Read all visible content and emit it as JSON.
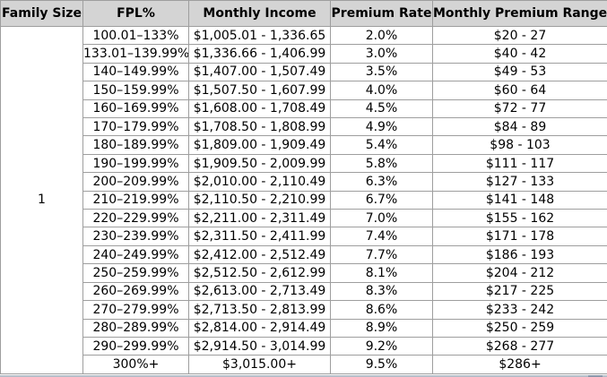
{
  "table": {
    "columns": [
      {
        "label": "Family Size"
      },
      {
        "label": "FPL%"
      },
      {
        "label": "Monthly Income"
      },
      {
        "label": "Premium Rate"
      },
      {
        "label": "Monthly Premium Range"
      }
    ],
    "family_size": "1",
    "rows": [
      {
        "fpl": "100.01–133%",
        "income": "$1,005.01 - 1,336.65",
        "rate": "2.0%",
        "range": "$20 - 27"
      },
      {
        "fpl": "133.01–139.99%",
        "income": "$1,336.66 - 1,406.99",
        "rate": "3.0%",
        "range": "$40 - 42"
      },
      {
        "fpl": "140–149.99%",
        "income": "$1,407.00 - 1,507.49",
        "rate": "3.5%",
        "range": "$49 - 53"
      },
      {
        "fpl": "150–159.99%",
        "income": "$1,507.50 - 1,607.99",
        "rate": "4.0%",
        "range": "$60 - 64"
      },
      {
        "fpl": "160–169.99%",
        "income": "$1,608.00 - 1,708.49",
        "rate": "4.5%",
        "range": "$72 - 77"
      },
      {
        "fpl": "170–179.99%",
        "income": "$1,708.50 - 1,808.99",
        "rate": "4.9%",
        "range": "$84 - 89"
      },
      {
        "fpl": "180–189.99%",
        "income": "$1,809.00 - 1,909.49",
        "rate": "5.4%",
        "range": "$98 - 103"
      },
      {
        "fpl": "190–199.99%",
        "income": "$1,909.50 - 2,009.99",
        "rate": "5.8%",
        "range": "$111 - 117"
      },
      {
        "fpl": "200–209.99%",
        "income": "$2,010.00 - 2,110.49",
        "rate": "6.3%",
        "range": "$127 - 133"
      },
      {
        "fpl": "210–219.99%",
        "income": "$2,110.50 - 2,210.99",
        "rate": "6.7%",
        "range": "$141 - 148"
      },
      {
        "fpl": "220–229.99%",
        "income": "$2,211.00 - 2,311.49",
        "rate": "7.0%",
        "range": "$155 - 162"
      },
      {
        "fpl": "230–239.99%",
        "income": "$2,311.50 - 2,411.99",
        "rate": "7.4%",
        "range": "$171 - 178"
      },
      {
        "fpl": "240–249.99%",
        "income": "$2,412.00 - 2,512.49",
        "rate": "7.7%",
        "range": "$186 - 193"
      },
      {
        "fpl": "250–259.99%",
        "income": "$2,512.50 - 2,612.99",
        "rate": "8.1%",
        "range": "$204 - 212"
      },
      {
        "fpl": "260–269.99%",
        "income": "$2,613.00 - 2,713.49",
        "rate": "8.3%",
        "range": "$217 - 225"
      },
      {
        "fpl": "270–279.99%",
        "income": "$2,713.50 - 2,813.99",
        "rate": "8.6%",
        "range": "$233 - 242"
      },
      {
        "fpl": "280–289.99%",
        "income": "$2,814.00 - 2,914.49",
        "rate": "8.9%",
        "range": "$250 - 259"
      },
      {
        "fpl": "290–299.99%",
        "income": "$2,914.50 - 3,014.99",
        "rate": "9.2%",
        "range": "$268 - 277"
      },
      {
        "fpl": "300%+",
        "income": "$3,015.00+",
        "rate": "9.5%",
        "range": "$286+"
      }
    ]
  },
  "colors": {
    "header_bg": "#d4d4d4",
    "border": "#9e9e9e",
    "bottom_band": "#b6bfc9",
    "bottom_dash": "#8b98ab",
    "text": "#000000"
  }
}
